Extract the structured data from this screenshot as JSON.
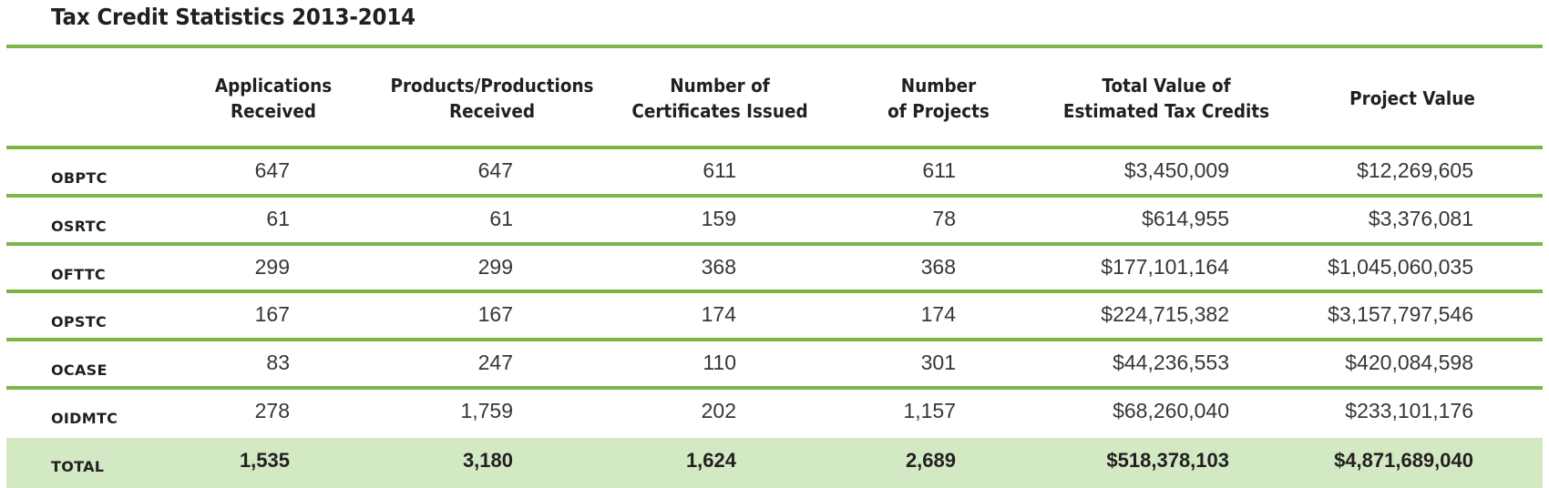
{
  "title": "Tax Credit Statistics 2013-2014",
  "accent_color": "#7ab648",
  "total_row_color": "#d3e9c4",
  "columns": [
    "Applications\nReceived",
    "Products/Productions\nReceived",
    "Number of\nCertificates Issued",
    "Number\nof Projects",
    "Total Value of\nEstimated Tax Credits",
    "Project Value"
  ],
  "rows": [
    {
      "label": "OBPTC",
      "values": [
        "647",
        "647",
        "611",
        "611",
        "$3,450,009",
        "$12,269,605"
      ]
    },
    {
      "label": "OSRTC",
      "values": [
        "61",
        "61",
        "159",
        "78",
        "$614,955",
        "$3,376,081"
      ]
    },
    {
      "label": "OFTTC",
      "values": [
        "299",
        "299",
        "368",
        "368",
        "$177,101,164",
        "$1,045,060,035"
      ]
    },
    {
      "label": "OPSTC",
      "values": [
        "167",
        "167",
        "174",
        "174",
        "$224,715,382",
        "$3,157,797,546"
      ]
    },
    {
      "label": "OCASE",
      "values": [
        "83",
        "247",
        "110",
        "301",
        "$44,236,553",
        "$420,084,598"
      ]
    },
    {
      "label": "OIDMTC",
      "values": [
        "278",
        "1,759",
        "202",
        "1,157",
        "$68,260,040",
        "$233,101,176"
      ]
    }
  ],
  "total": {
    "label": "TOTAL",
    "values": [
      "1,535",
      "3,180",
      "1,624",
      "2,689",
      "$518,378,103",
      "$4,871,689,040"
    ]
  }
}
